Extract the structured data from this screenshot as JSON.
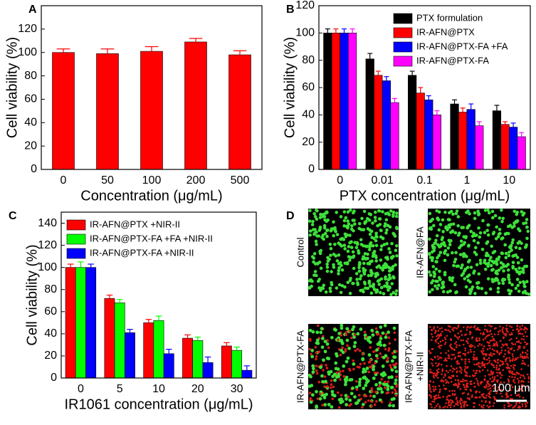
{
  "chart_data": [
    {
      "type": "bar",
      "panel_label": "A",
      "x_label": "Concentration (μg/mL)",
      "y_label": "Cell viability (%)",
      "categories": [
        "0",
        "50",
        "100",
        "200",
        "500"
      ],
      "values": [
        100,
        99,
        101,
        109,
        98
      ],
      "errors": [
        3,
        4,
        4,
        3,
        3.5
      ],
      "color": "#ff0000",
      "ylim": [
        0,
        140
      ],
      "yticks": [
        0,
        20,
        40,
        60,
        80,
        100,
        120
      ]
    },
    {
      "type": "bar",
      "panel_label": "B",
      "x_label": "PTX concentration (μg/mL)",
      "y_label": "Cell viability (%)",
      "categories": [
        "0",
        "0.01",
        "0.1",
        "1",
        "10"
      ],
      "ylim": [
        0,
        120
      ],
      "yticks": [
        0,
        20,
        40,
        60,
        80,
        100,
        120
      ],
      "legend": "upper right",
      "series": [
        {
          "name": "PTX formulation",
          "color": "#000000",
          "values": [
            100,
            81,
            69,
            48,
            43
          ],
          "errors": [
            3,
            4,
            3,
            3,
            4
          ]
        },
        {
          "name": "IR-AFN@PTX",
          "color": "#ff0000",
          "values": [
            100,
            69,
            56,
            42,
            33
          ],
          "errors": [
            3,
            3,
            4,
            3,
            2
          ]
        },
        {
          "name": "IR-AFN@PTX-FA +FA",
          "color": "#0000ff",
          "values": [
            100,
            65,
            51,
            44,
            31
          ],
          "errors": [
            3,
            3,
            3,
            4,
            3
          ]
        },
        {
          "name": "IR-AFN@PTX-FA",
          "color": "#ff00ff",
          "values": [
            100,
            49,
            40,
            32,
            24
          ],
          "errors": [
            3,
            3,
            3,
            3,
            3
          ]
        }
      ]
    },
    {
      "type": "bar",
      "panel_label": "C",
      "x_label": "IR1061 concentration (μg/mL)",
      "y_label": "Cell viability (%)",
      "categories": [
        "0",
        "5",
        "10",
        "20",
        "30"
      ],
      "ylim": [
        0,
        150
      ],
      "yticks": [
        0,
        20,
        40,
        60,
        80,
        100,
        120,
        140
      ],
      "legend": "upper left",
      "series": [
        {
          "name": "IR-AFN@PTX +NIR-II",
          "color": "#ff0000",
          "values": [
            100,
            72,
            50,
            36,
            29
          ],
          "errors": [
            3,
            3,
            3,
            3,
            3
          ]
        },
        {
          "name": "IR-AFN@PTX-FA +FA +NIR-II",
          "color": "#00ff00",
          "values": [
            100,
            68,
            52,
            34,
            25
          ],
          "errors": [
            5,
            3,
            4,
            3,
            3
          ]
        },
        {
          "name": "IR-AFN@PTX-FA +NIR-II",
          "color": "#0000ff",
          "values": [
            100,
            41,
            22,
            14,
            7
          ],
          "errors": [
            3,
            3,
            4,
            5,
            4
          ]
        }
      ]
    }
  ],
  "panel_d": {
    "panel_label": "D",
    "images": [
      [
        "Control"
      ],
      [
        "IR-AFN@FA"
      ],
      [
        "IR-AFN@PTX-FA"
      ],
      [
        "IR-AFN@PTX-FA",
        "+NIR-II"
      ]
    ],
    "scale_bar": "100 μm"
  }
}
